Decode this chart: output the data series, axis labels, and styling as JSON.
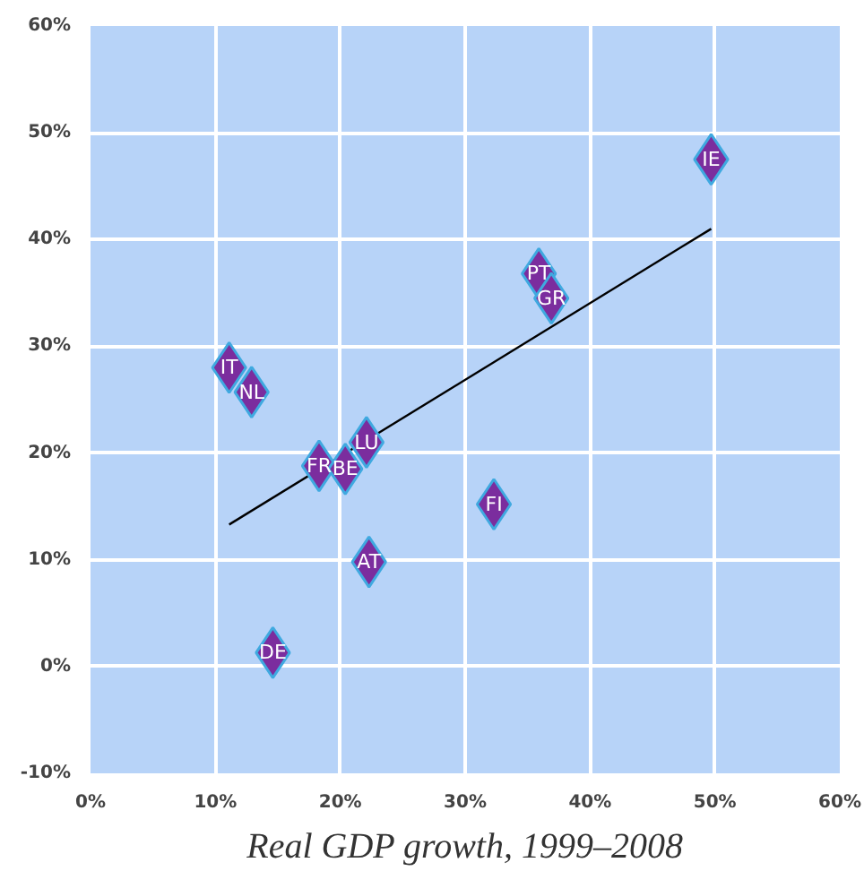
{
  "chart_data": {
    "type": "scatter",
    "xlabel": "Real GDP growth, 1999–2008",
    "xlim": [
      0,
      60
    ],
    "ylim": [
      -10,
      60
    ],
    "xticks": [
      {
        "value": 0,
        "label": "0%"
      },
      {
        "value": 10,
        "label": "10%"
      },
      {
        "value": 20,
        "label": "20%"
      },
      {
        "value": 30,
        "label": "30%"
      },
      {
        "value": 40,
        "label": "40%"
      },
      {
        "value": 50,
        "label": "50%"
      },
      {
        "value": 60,
        "label": "60%"
      }
    ],
    "yticks": [
      {
        "value": -10,
        "label": "-10%"
      },
      {
        "value": 0,
        "label": "0%"
      },
      {
        "value": 10,
        "label": "10%"
      },
      {
        "value": 20,
        "label": "20%"
      },
      {
        "value": 30,
        "label": "30%"
      },
      {
        "value": 40,
        "label": "40%"
      },
      {
        "value": 50,
        "label": "50%"
      },
      {
        "value": 60,
        "label": "60%"
      }
    ],
    "grid": true,
    "series": [
      {
        "marker": "diamond",
        "color": "#7b2d9e",
        "x": [
          49.7,
          35.9,
          36.9,
          11.1,
          12.9,
          18.3,
          20.4,
          22.1,
          32.3,
          22.3,
          14.6
        ],
        "values": [
          47.5,
          36.8,
          34.5,
          28.0,
          25.7,
          18.8,
          18.5,
          21.0,
          15.2,
          9.8,
          1.3
        ],
        "value_labels": [
          "IE",
          "PT",
          "GR",
          "IT",
          "NL",
          "FR",
          "BE",
          "LU",
          "FI",
          "AT",
          "DE"
        ]
      },
      {
        "type": "line",
        "color": "#000000",
        "x": [
          11.1,
          49.7
        ],
        "values": [
          13.3,
          41.0
        ]
      }
    ]
  }
}
